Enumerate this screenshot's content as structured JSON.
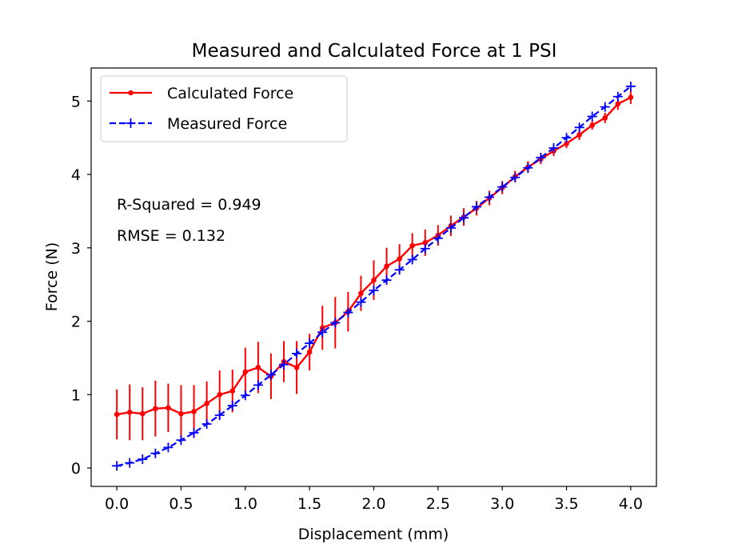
{
  "chart_data": {
    "type": "line",
    "title": "Measured and Calculated Force at 1 PSI",
    "xlabel": "Displacement (mm)",
    "ylabel": "Force (N)",
    "xlim": [
      -0.2,
      4.2
    ],
    "ylim": [
      -0.25,
      5.45
    ],
    "xticks": [
      0.0,
      0.5,
      1.0,
      1.5,
      2.0,
      2.5,
      3.0,
      3.5,
      4.0
    ],
    "xtick_labels": [
      "0.0",
      "0.5",
      "1.0",
      "1.5",
      "2.0",
      "2.5",
      "3.0",
      "3.5",
      "4.0"
    ],
    "yticks": [
      0,
      1,
      2,
      3,
      4,
      5
    ],
    "ytick_labels": [
      "0",
      "1",
      "2",
      "3",
      "4",
      "5"
    ],
    "grid": false,
    "legend_position": "top-left",
    "x": [
      0.0,
      0.1,
      0.2,
      0.3,
      0.4,
      0.5,
      0.6,
      0.7,
      0.8,
      0.9,
      1.0,
      1.1,
      1.2,
      1.3,
      1.4,
      1.5,
      1.6,
      1.7,
      1.8,
      1.9,
      2.0,
      2.1,
      2.2,
      2.3,
      2.4,
      2.5,
      2.6,
      2.7,
      2.8,
      2.9,
      3.0,
      3.1,
      3.2,
      3.3,
      3.4,
      3.5,
      3.6,
      3.7,
      3.8,
      3.9,
      4.0
    ],
    "series": [
      {
        "name": "Calculated Force",
        "color": "#ff0000",
        "style": "solid",
        "marker": "dot",
        "values": [
          0.73,
          0.76,
          0.74,
          0.81,
          0.82,
          0.74,
          0.77,
          0.88,
          1.0,
          1.05,
          1.31,
          1.37,
          1.25,
          1.45,
          1.37,
          1.58,
          1.91,
          1.98,
          2.13,
          2.38,
          2.56,
          2.75,
          2.85,
          3.03,
          3.07,
          3.17,
          3.3,
          3.42,
          3.54,
          3.68,
          3.82,
          3.97,
          4.1,
          4.21,
          4.32,
          4.42,
          4.54,
          4.67,
          4.77,
          4.96,
          5.05
        ],
        "error": [
          0.34,
          0.38,
          0.36,
          0.38,
          0.33,
          0.39,
          0.36,
          0.3,
          0.33,
          0.29,
          0.33,
          0.35,
          0.31,
          0.28,
          0.36,
          0.25,
          0.3,
          0.35,
          0.27,
          0.24,
          0.27,
          0.25,
          0.2,
          0.17,
          0.18,
          0.14,
          0.14,
          0.12,
          0.1,
          0.1,
          0.09,
          0.08,
          0.08,
          0.07,
          0.07,
          0.06,
          0.07,
          0.06,
          0.07,
          0.08,
          0.09
        ]
      },
      {
        "name": "Measured Force",
        "color": "#0000ff",
        "style": "dashed",
        "marker": "plus",
        "values": [
          0.03,
          0.07,
          0.12,
          0.2,
          0.28,
          0.38,
          0.48,
          0.6,
          0.72,
          0.85,
          0.99,
          1.13,
          1.27,
          1.41,
          1.56,
          1.7,
          1.85,
          1.98,
          2.12,
          2.26,
          2.42,
          2.56,
          2.7,
          2.84,
          2.99,
          3.13,
          3.27,
          3.41,
          3.56,
          3.69,
          3.83,
          3.96,
          4.09,
          4.23,
          4.36,
          4.5,
          4.64,
          4.79,
          4.92,
          5.06,
          5.2
        ]
      }
    ],
    "annotations": [
      "R-Squared = 0.949",
      "RMSE = 0.132"
    ]
  }
}
